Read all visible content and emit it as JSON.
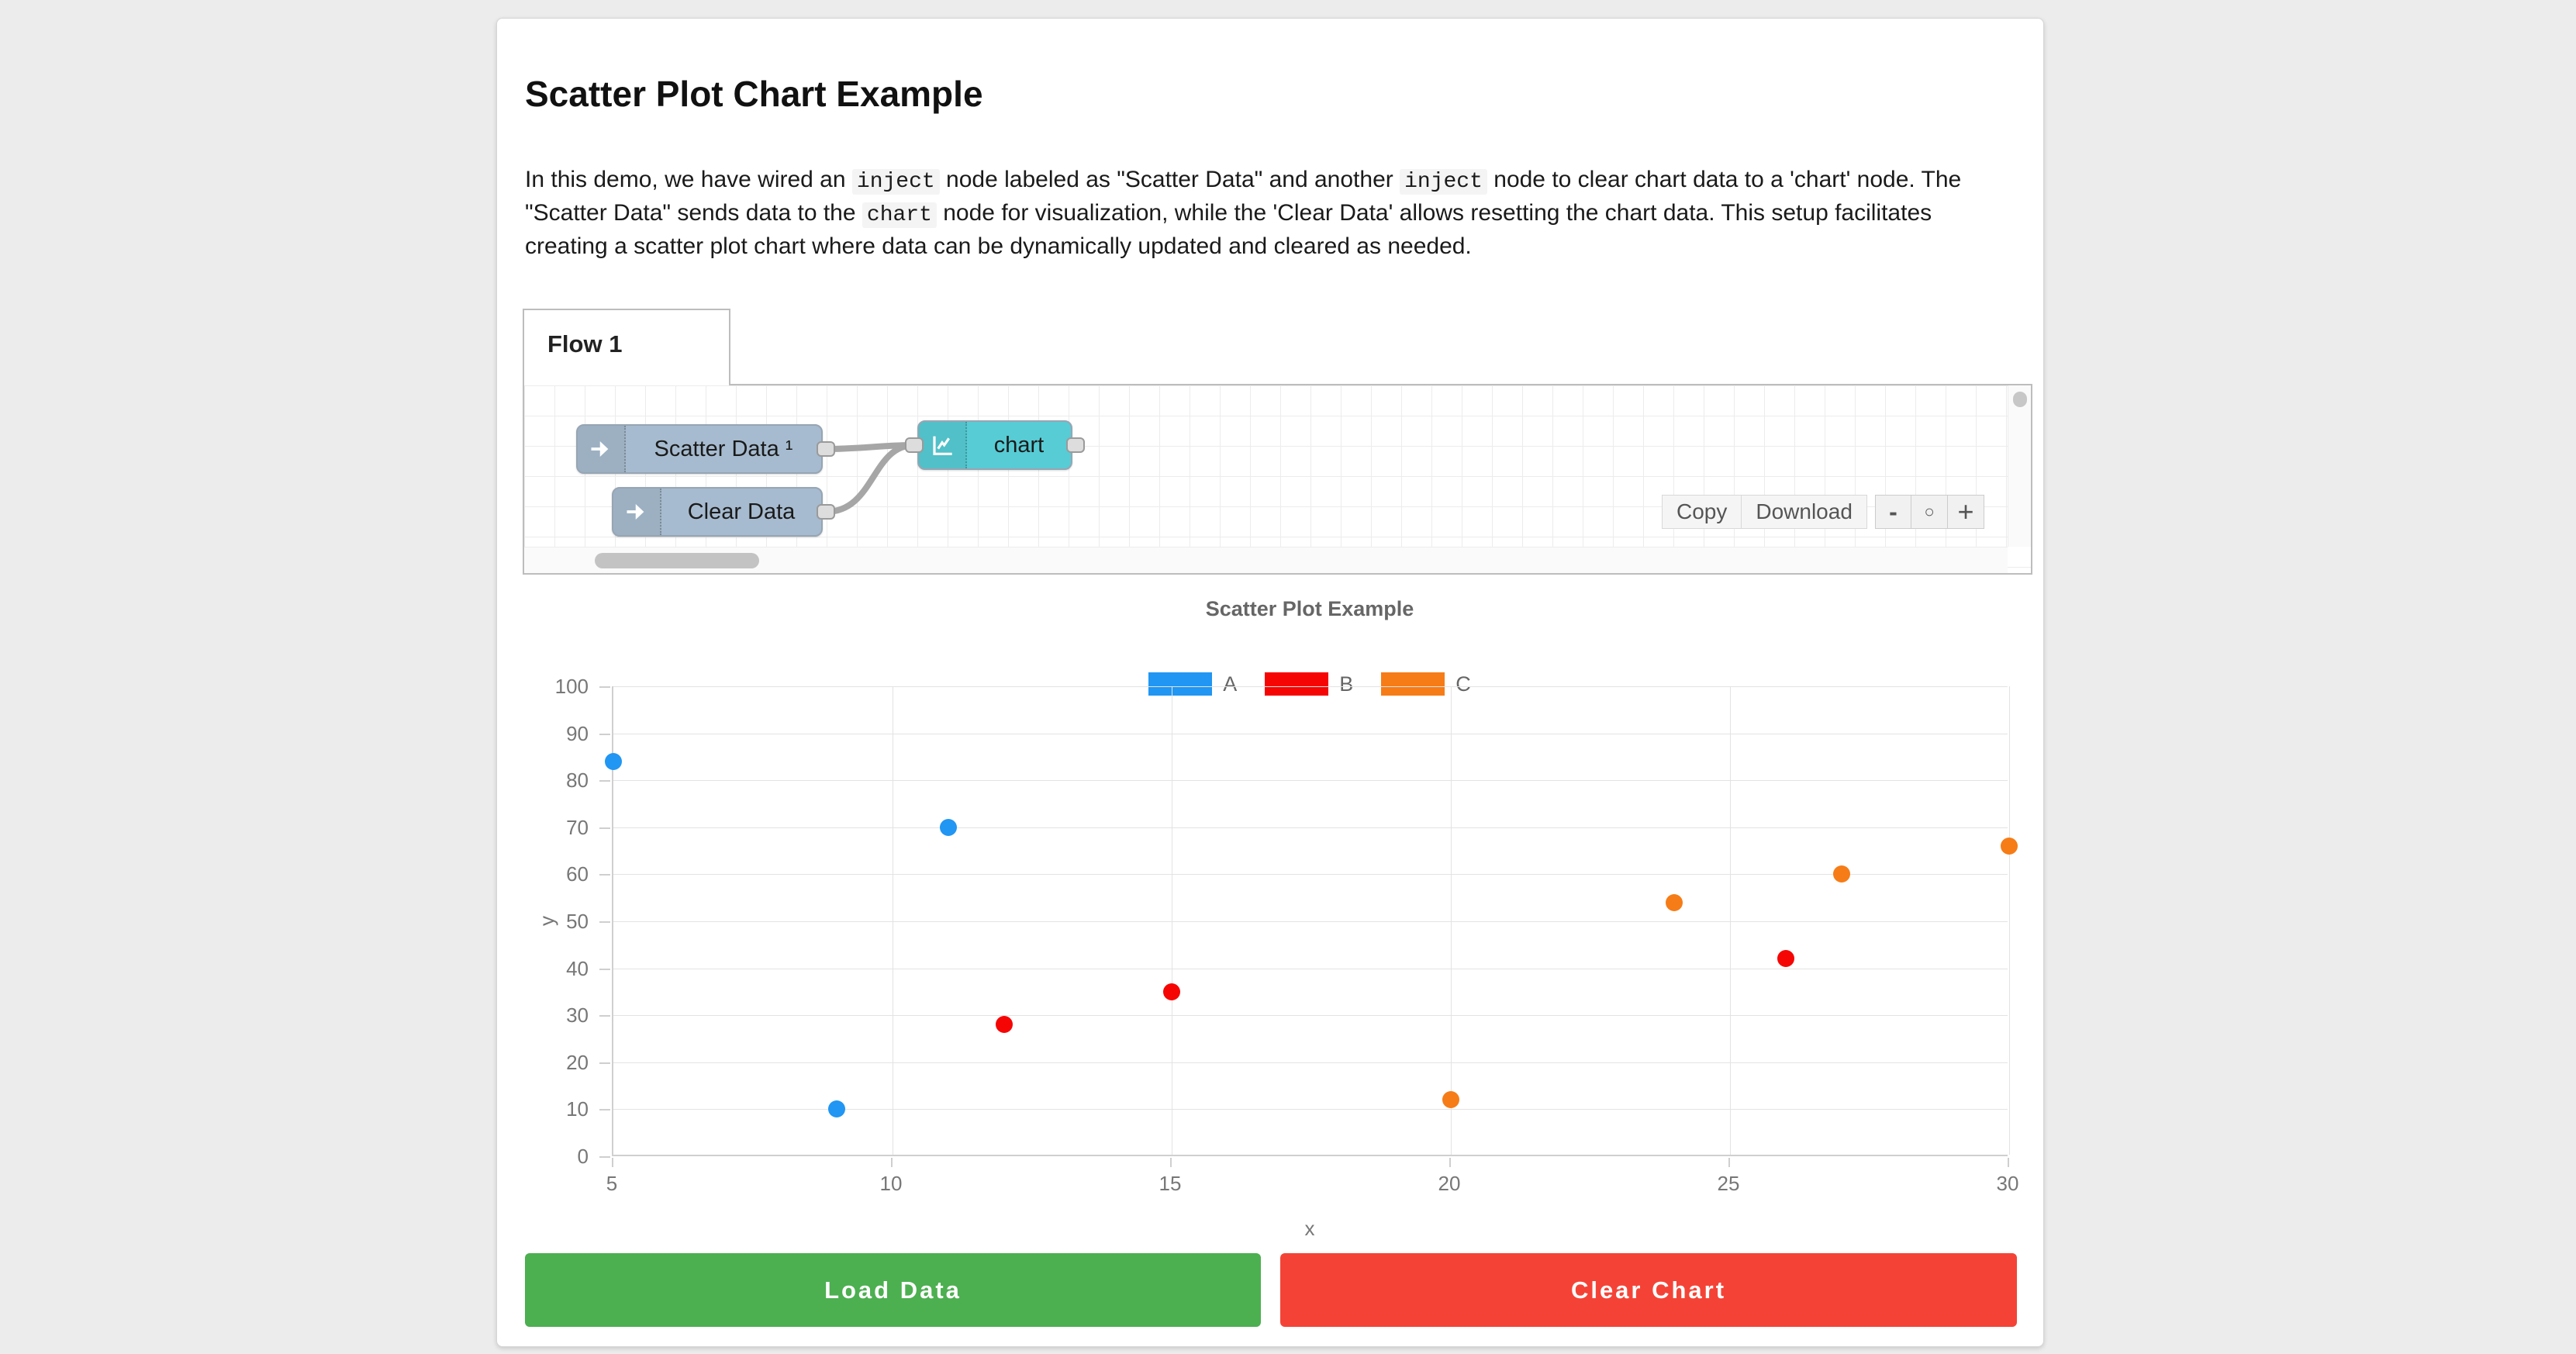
{
  "page": {
    "title": "Scatter Plot Chart Example"
  },
  "description_segments": [
    {
      "style": "text",
      "text": "In this demo, we have wired an "
    },
    {
      "style": "code",
      "text": "inject"
    },
    {
      "style": "text",
      "text": " node labeled as \"Scatter Data\" and another "
    },
    {
      "style": "code",
      "text": "inject"
    },
    {
      "style": "text",
      "text": " node to clear chart data to a 'chart' node. The \"Scatter Data\" sends data to the "
    },
    {
      "style": "code",
      "text": "chart"
    },
    {
      "style": "text",
      "text": " node for visualization, while the 'Clear Data' allows resetting the chart data. This setup facilitates creating a scatter plot chart where data can be dynamically updated and cleared as needed."
    }
  ],
  "flow_editor": {
    "tab_label": "Flow 1",
    "nodes": [
      {
        "id": "scatter-data",
        "type": "inject",
        "label": "Scatter Data ¹",
        "color": "#a6bbcf"
      },
      {
        "id": "clear-data",
        "type": "inject",
        "label": "Clear Data",
        "color": "#a6bbcf"
      },
      {
        "id": "chart",
        "type": "chart",
        "label": "chart",
        "color": "#57ccd5"
      }
    ],
    "toolbar": {
      "copy": "Copy",
      "download": "Download",
      "zoom_out": "-",
      "zoom_reset": "○",
      "zoom_in": "+"
    }
  },
  "chart_data": {
    "type": "scatter",
    "title": "Scatter Plot Example",
    "xlabel": "x",
    "ylabel": "y",
    "xlim": [
      5,
      30
    ],
    "ylim": [
      0,
      100
    ],
    "x_ticks": [
      5,
      10,
      15,
      20,
      25,
      30
    ],
    "y_ticks": [
      0,
      10,
      20,
      30,
      40,
      50,
      60,
      70,
      80,
      90,
      100
    ],
    "grid": true,
    "legend_position": "top",
    "series": [
      {
        "name": "A",
        "color": "#2196f3",
        "points": [
          [
            5,
            84
          ],
          [
            9,
            10
          ],
          [
            11,
            70
          ]
        ]
      },
      {
        "name": "B",
        "color": "#f60505",
        "points": [
          [
            12,
            28
          ],
          [
            15,
            35
          ],
          [
            26,
            42
          ]
        ]
      },
      {
        "name": "C",
        "color": "#f67c17",
        "points": [
          [
            20,
            12
          ],
          [
            24,
            54
          ],
          [
            27,
            60
          ],
          [
            30,
            66
          ]
        ]
      }
    ]
  },
  "actions": {
    "load_label": "Load Data",
    "load_color": "#4caf50",
    "clear_label": "Clear Chart",
    "clear_color": "#f44336"
  }
}
